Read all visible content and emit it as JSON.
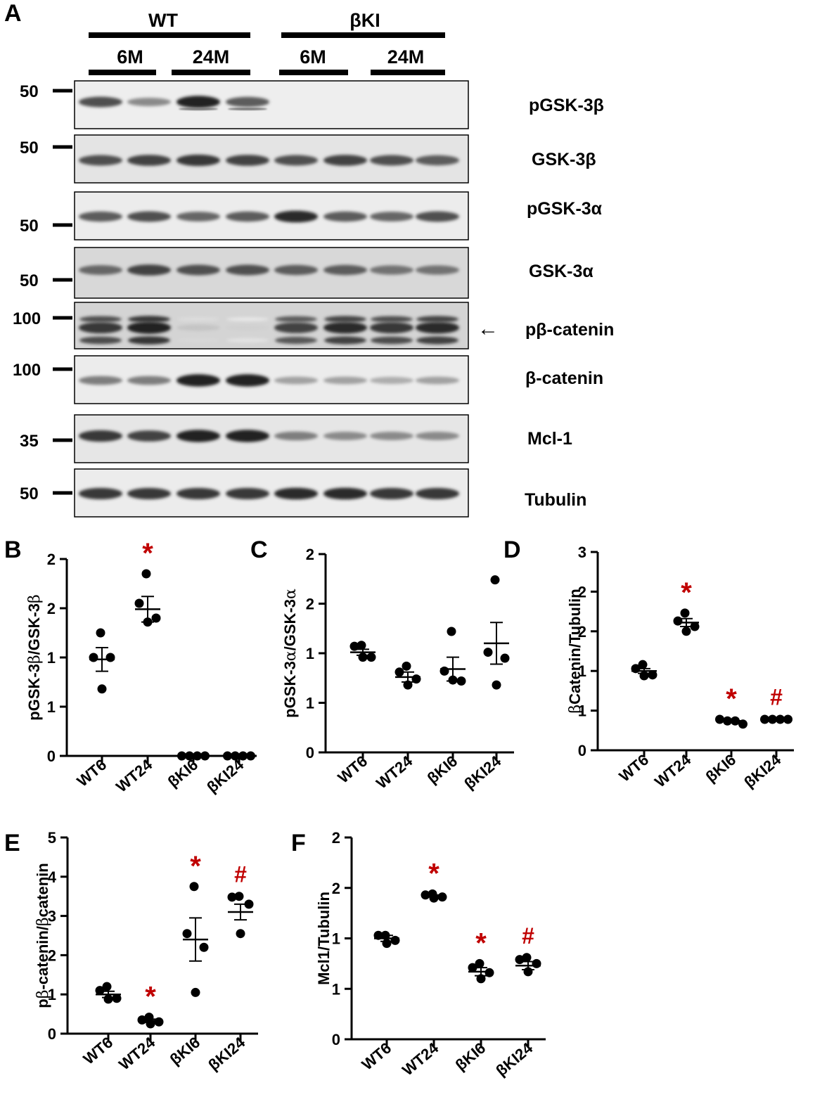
{
  "panels": {
    "A": "A",
    "B": "B",
    "C": "C",
    "D": "D",
    "E": "E",
    "F": "F"
  },
  "blot": {
    "groups": [
      {
        "label": "WT",
        "subgroups": [
          "6M",
          "24M"
        ]
      },
      {
        "label": "βKI",
        "subgroups": [
          "6M",
          "24M"
        ]
      }
    ],
    "rows": [
      {
        "label": "pGSK-3β",
        "marker": "50",
        "bands": [
          0.75,
          0.5,
          0.95,
          0.7,
          0,
          0,
          0,
          0
        ],
        "band_color": "#1a1a1a",
        "noise": 0.02
      },
      {
        "label": "GSK-3β",
        "marker": "50",
        "bands": [
          0.75,
          0.8,
          0.85,
          0.8,
          0.75,
          0.8,
          0.75,
          0.7
        ],
        "band_color": "#1a1a1a",
        "noise": 0.15
      },
      {
        "label": "pGSK-3α",
        "marker": "50",
        "bands": [
          0.7,
          0.75,
          0.65,
          0.7,
          0.9,
          0.7,
          0.65,
          0.75
        ],
        "band_color": "#1a1a1a",
        "noise": 0.05
      },
      {
        "label": "GSK-3α",
        "marker": "50",
        "bands": [
          0.65,
          0.8,
          0.75,
          0.75,
          0.7,
          0.7,
          0.6,
          0.6
        ],
        "band_color": "#1a1a1a",
        "noise": 0.3
      },
      {
        "label": "pβ-catenin",
        "marker": "100",
        "bands": [
          0.85,
          0.95,
          0.25,
          0.2,
          0.8,
          0.9,
          0.85,
          0.9
        ],
        "band_color": "#1a1a1a",
        "noise": 0.35,
        "arrow": "←"
      },
      {
        "label": "β-catenin",
        "marker": "100",
        "bands": [
          0.55,
          0.55,
          0.95,
          0.95,
          0.4,
          0.4,
          0.35,
          0.4
        ],
        "band_color": "#1a1a1a",
        "noise": 0.05
      },
      {
        "label": "Mcl-1",
        "marker": "35",
        "bands": [
          0.85,
          0.8,
          0.95,
          0.95,
          0.55,
          0.5,
          0.5,
          0.5
        ],
        "band_color": "#1a1a1a",
        "noise": 0.12
      },
      {
        "label": "Tubulin",
        "marker": "50",
        "bands": [
          0.85,
          0.85,
          0.85,
          0.85,
          0.9,
          0.9,
          0.85,
          0.85
        ],
        "band_color": "#1a1a1a",
        "noise": 0.05
      }
    ]
  },
  "accent_color": "#c00000",
  "chart_data": [
    {
      "panel": "B",
      "type": "scatter",
      "categories": [
        "WT6",
        "WT24",
        "βKI6",
        "βKI24"
      ],
      "ylabel_parts": [
        "pGSK-3",
        "β",
        "/GSK-3",
        "β"
      ],
      "yticks": [
        "0",
        "1",
        "1",
        "2",
        "2"
      ],
      "ylim": [
        0,
        2.0
      ],
      "points": [
        [
          1.25,
          1.0,
          1.0,
          0.68
        ],
        [
          1.85,
          1.55,
          1.4,
          1.36
        ],
        [
          0,
          0,
          0,
          0
        ],
        [
          0,
          0,
          0,
          0
        ]
      ],
      "mean": [
        0.98,
        1.49,
        0.0,
        0.0
      ],
      "sem": [
        0.12,
        0.13,
        0,
        0
      ],
      "marks": [
        "",
        "*",
        "",
        ""
      ]
    },
    {
      "panel": "C",
      "type": "scatter",
      "categories": [
        "WT6",
        "WT24",
        "βKI6",
        "βKI24"
      ],
      "ylabel_parts": [
        "pGSK-3",
        "α",
        "/GSK-3",
        "α"
      ],
      "yticks": [
        "0",
        "1",
        "1",
        "2",
        "2"
      ],
      "ylim": [
        0,
        2.0
      ],
      "points": [
        [
          1.08,
          1.07,
          0.96,
          0.96
        ],
        [
          0.87,
          0.81,
          0.74,
          0.68
        ],
        [
          1.22,
          0.82,
          0.72,
          0.73
        ],
        [
          1.74,
          1.01,
          0.95,
          0.68
        ]
      ],
      "mean": [
        1.01,
        0.76,
        0.84,
        1.1
      ],
      "sem": [
        0.03,
        0.05,
        0.12,
        0.21
      ],
      "marks": [
        "",
        "",
        "",
        ""
      ]
    },
    {
      "panel": "D",
      "type": "scatter",
      "categories": [
        "WT6",
        "WT24",
        "βKI6",
        "βKI24"
      ],
      "ylabel_parts": [
        "β",
        "Catenin/Tubulin"
      ],
      "yticks": [
        "0",
        "1",
        "1",
        "2",
        "2",
        "3"
      ],
      "ylim": [
        0,
        2.5
      ],
      "points": [
        [
          1.08,
          1.03,
          0.95,
          0.94
        ],
        [
          1.73,
          1.63,
          1.56,
          1.5
        ],
        [
          0.39,
          0.37,
          0.37,
          0.33
        ],
        [
          0.39,
          0.39,
          0.39,
          0.39
        ]
      ],
      "mean": [
        1.0,
        1.61,
        0.37,
        0.39
      ],
      "sem": [
        0.03,
        0.05,
        0.015,
        0.005
      ],
      "marks": [
        "",
        "*",
        "*",
        "#"
      ]
    },
    {
      "panel": "E",
      "type": "scatter",
      "categories": [
        "WT6",
        "WT24",
        "βKI6",
        "βKI24"
      ],
      "ylabel_parts": [
        "p",
        "β",
        "-catenin/",
        "β",
        "catenin"
      ],
      "yticks": [
        "0",
        "1",
        "2",
        "3",
        "4",
        "5"
      ],
      "ylim": [
        0,
        5
      ],
      "points": [
        [
          1.2,
          1.1,
          0.9,
          0.88
        ],
        [
          0.42,
          0.35,
          0.3,
          0.25
        ],
        [
          3.75,
          2.55,
          2.2,
          1.05
        ],
        [
          3.5,
          3.48,
          3.3,
          2.55
        ]
      ],
      "mean": [
        1.0,
        0.33,
        2.4,
        3.1
      ],
      "sem": [
        0.08,
        0.04,
        0.55,
        0.2
      ],
      "marks": [
        "",
        "*",
        "*",
        "#"
      ]
    },
    {
      "panel": "F",
      "type": "scatter",
      "categories": [
        "WT6",
        "WT24",
        "βKI6",
        "βKI24"
      ],
      "ylabel_parts": [
        "Mcl1/Tubulin"
      ],
      "yticks": [
        "0",
        "1",
        "1",
        "2",
        "2"
      ],
      "ylim": [
        0,
        2.0
      ],
      "points": [
        [
          1.03,
          1.03,
          0.98,
          0.95
        ],
        [
          1.44,
          1.43,
          1.41,
          1.4
        ],
        [
          0.75,
          0.71,
          0.66,
          0.6
        ],
        [
          0.81,
          0.79,
          0.75,
          0.67
        ]
      ],
      "mean": [
        1.0,
        1.42,
        0.67,
        0.73
      ],
      "sem": [
        0.03,
        0.01,
        0.04,
        0.04
      ],
      "marks": [
        "",
        "*",
        "*",
        "#"
      ]
    }
  ]
}
